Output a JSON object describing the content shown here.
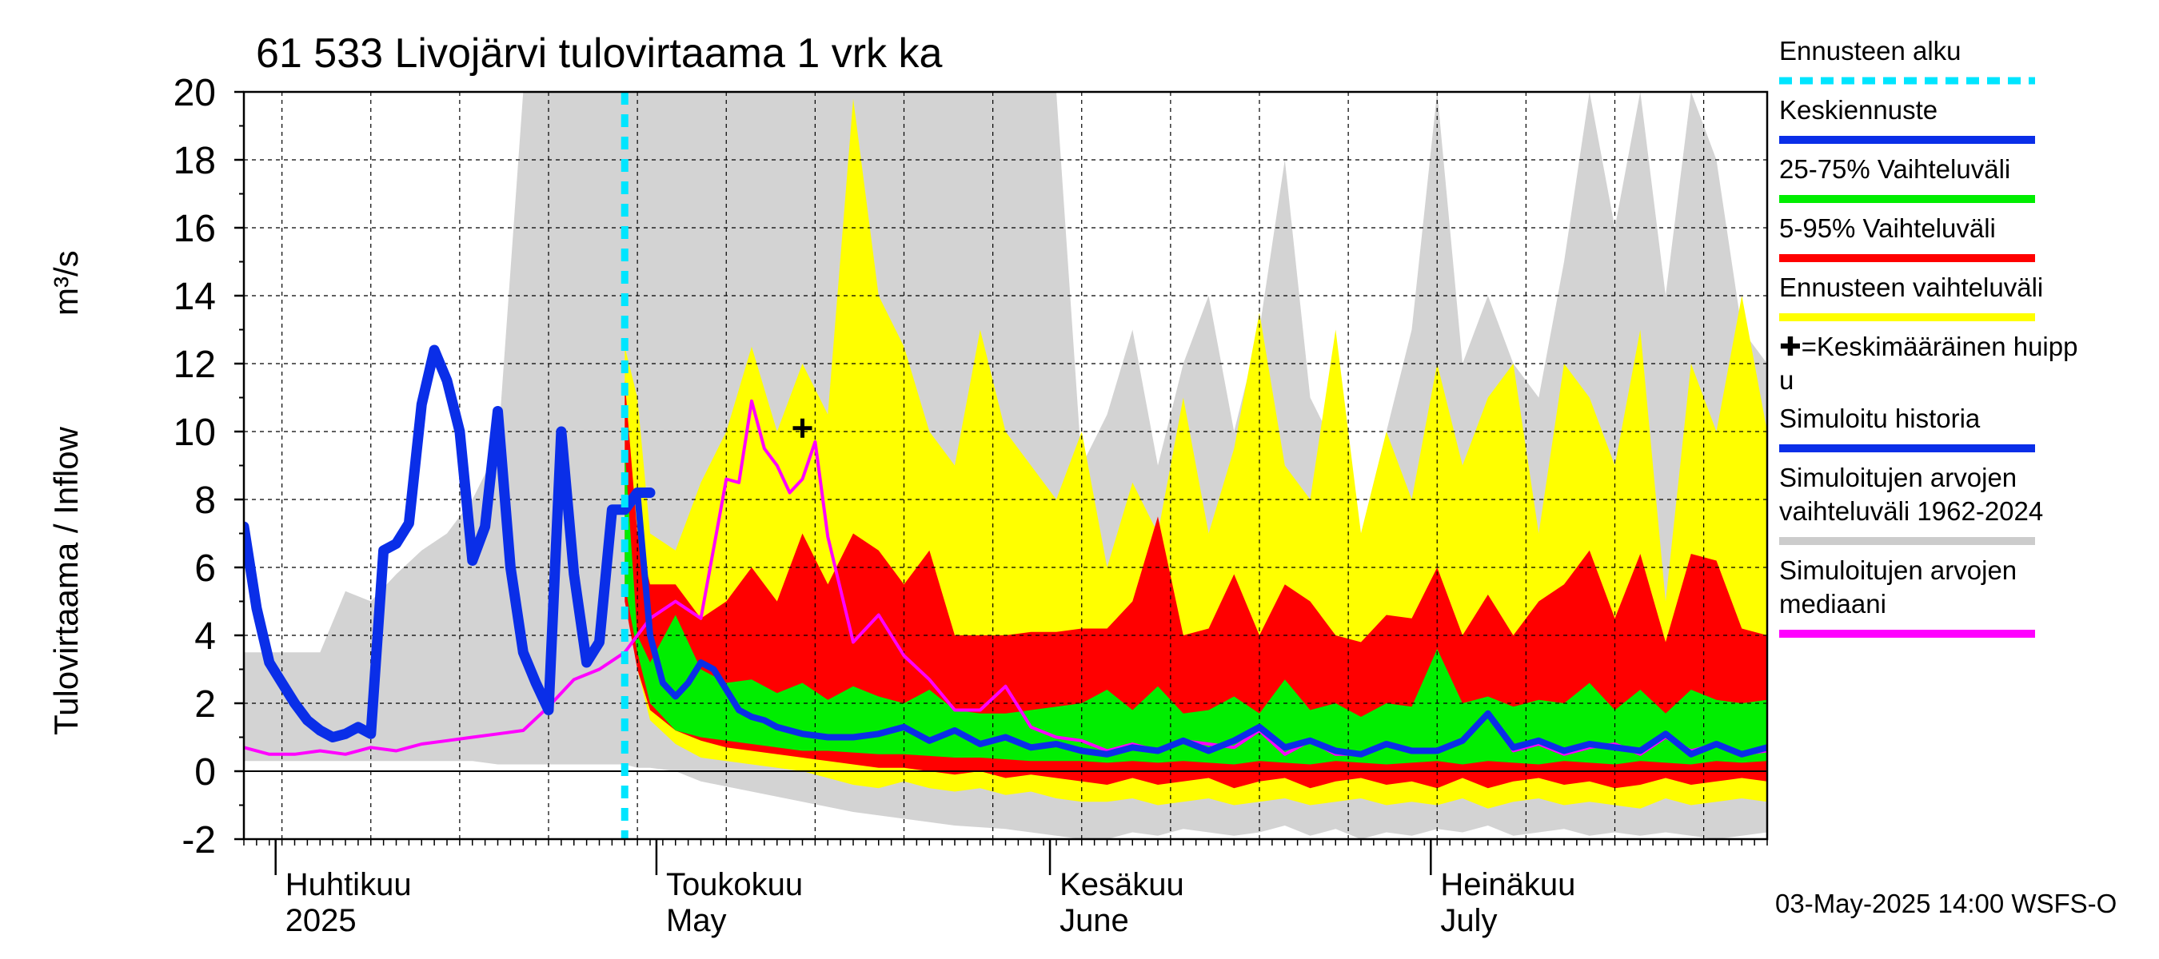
{
  "chart_data": {
    "type": "area",
    "title": "61 533 Livojärvi tulovirtaama 1 vrk ka",
    "ylabel": "Tulovirtaama / Inflow    m³/s",
    "ylabel_main": "Tulovirtaama / Inflow",
    "ylabel_unit": "m³/s",
    "ylim": [
      -2,
      20
    ],
    "y_ticks": [
      "20",
      "18",
      "16",
      "14",
      "12",
      "10",
      "8",
      "6",
      "4",
      "2",
      "0",
      "-2"
    ],
    "grid": true,
    "x_unit": "day index from 2025-03-29",
    "x_range": [
      0,
      120
    ],
    "month_labels": [
      {
        "fi": "Huhtikuu",
        "en": "2025",
        "day": 3
      },
      {
        "fi": "Toukokuu",
        "en": "May",
        "day": 33
      },
      {
        "fi": "Kesäkuu",
        "en": "June",
        "day": 64
      },
      {
        "fi": "Heinäkuu",
        "en": "July",
        "day": 94
      }
    ],
    "forecast_start_day": 30,
    "mean_peak": {
      "day": 44,
      "value": 10.1
    },
    "footer": "03-May-2025 14:00 WSFS-O",
    "legend": [
      {
        "label": "Ennusteen alku",
        "color": "#00e5ff",
        "style": "dashed"
      },
      {
        "label": "Keskiennuste",
        "color": "#0a2ee8",
        "style": "solid"
      },
      {
        "label": "25-75% Vaihteluväli",
        "color": "#00ee00",
        "style": "solid"
      },
      {
        "label": "5-95% Vaihteluväli",
        "color": "#ff0000",
        "style": "solid"
      },
      {
        "label": "Ennusteen vaihteluväli",
        "color": "#ffff00",
        "style": "solid"
      },
      {
        "label": "✚=Keskimääräinen huipp\nu",
        "color": "#000000",
        "style": "marker"
      },
      {
        "label": "Simuloitu historia",
        "color": "#0a2ee8",
        "style": "solid"
      },
      {
        "label": "Simuloitujen arvojen\nvaihteluväli 1962-2024",
        "color": "#cccccc",
        "style": "solid"
      },
      {
        "label": "Simuloitujen arvojen\nmediaani",
        "color": "#ff00ff",
        "style": "solid"
      }
    ],
    "colors": {
      "history_band": "#d3d3d3",
      "forecast_band": "#ffff00",
      "band_5_95": "#ff0000",
      "band_25_75": "#00ee00",
      "mean": "#0a2ee8",
      "median": "#ff00ff",
      "forecast_start": "#00e5ff"
    },
    "series": [
      {
        "name": "Simulated history range 1962-2024",
        "x": [
          0,
          2,
          4,
          6,
          8,
          10,
          12,
          14,
          16,
          18,
          20,
          22,
          24,
          26,
          28,
          30,
          31,
          32,
          34,
          36,
          40,
          44,
          48,
          52,
          56,
          60,
          62,
          64,
          66,
          68,
          70,
          72,
          74,
          76,
          78,
          80,
          82,
          84,
          86,
          88,
          90,
          92,
          94,
          96,
          98,
          100,
          102,
          104,
          106,
          108,
          110,
          112,
          114,
          116,
          118,
          120
        ],
        "low": [
          0.3,
          0.3,
          0.3,
          0.3,
          0.3,
          0.3,
          0.3,
          0.3,
          0.3,
          0.3,
          0.2,
          0.2,
          0.2,
          0.2,
          0.2,
          0.2,
          0.1,
          0.1,
          0,
          -0.3,
          -0.6,
          -0.9,
          -1.2,
          -1.4,
          -1.6,
          -1.7,
          -1.8,
          -1.9,
          -2,
          -2,
          -1.8,
          -1.9,
          -1.7,
          -1.8,
          -1.9,
          -1.8,
          -1.6,
          -1.9,
          -1.7,
          -2,
          -1.8,
          -1.9,
          -1.7,
          -1.8,
          -1.6,
          -1.9,
          -1.8,
          -1.7,
          -1.9,
          -1.8,
          -1.9,
          -1.8,
          -1.9,
          -2,
          -1.9,
          -1.8
        ],
        "high": [
          3.5,
          3.5,
          3.5,
          3.5,
          5.3,
          5.0,
          5.8,
          6.5,
          7.0,
          8.0,
          9.5,
          20,
          20,
          20,
          20,
          20,
          20,
          20,
          20,
          20,
          20,
          20,
          20,
          20,
          20,
          20,
          20,
          20,
          9.0,
          10.5,
          13.0,
          9.0,
          12.0,
          14.0,
          10.0,
          13.0,
          18.0,
          11.0,
          9.5,
          7.0,
          10.0,
          13.0,
          20,
          12.0,
          14.0,
          12.0,
          11.0,
          15.0,
          20,
          16.0,
          20,
          14.0,
          20,
          18.0,
          13.0,
          12.0
        ]
      },
      {
        "name": "Forecast range",
        "x": [
          30,
          31,
          32,
          34,
          36,
          38,
          40,
          42,
          44,
          46,
          48,
          50,
          52,
          54,
          56,
          58,
          60,
          62,
          64,
          66,
          68,
          70,
          72,
          74,
          76,
          78,
          80,
          82,
          84,
          86,
          88,
          90,
          92,
          94,
          96,
          98,
          100,
          102,
          104,
          106,
          108,
          110,
          112,
          114,
          116,
          118,
          120
        ],
        "low": [
          6,
          3,
          1.5,
          0.8,
          0.4,
          0.3,
          0.2,
          0.1,
          0,
          -0.2,
          -0.4,
          -0.5,
          -0.3,
          -0.5,
          -0.6,
          -0.5,
          -0.7,
          -0.6,
          -0.8,
          -0.9,
          -0.9,
          -0.8,
          -1.0,
          -0.9,
          -0.8,
          -1.0,
          -0.9,
          -0.8,
          -1.0,
          -0.9,
          -0.8,
          -1.0,
          -0.9,
          -1.0,
          -0.8,
          -1.1,
          -0.9,
          -0.8,
          -1.0,
          -0.9,
          -1.0,
          -1.1,
          -0.8,
          -1.0,
          -0.9,
          -0.8,
          -0.9
        ],
        "high": [
          12.5,
          11,
          7,
          6.5,
          8.5,
          10,
          12.5,
          10,
          12,
          10.5,
          19.8,
          14,
          12.5,
          10,
          9,
          13,
          10,
          9,
          8,
          10,
          6,
          8.5,
          7,
          11,
          7,
          9.5,
          13.5,
          9,
          8,
          13,
          7,
          10,
          8,
          12,
          9,
          11,
          12,
          7,
          12,
          11,
          9,
          13,
          5,
          12,
          10,
          14,
          10
        ]
      },
      {
        "name": "5-95% range",
        "x": [
          30,
          31,
          32,
          34,
          36,
          38,
          40,
          42,
          44,
          46,
          48,
          50,
          52,
          54,
          56,
          58,
          60,
          62,
          64,
          66,
          68,
          70,
          72,
          74,
          76,
          78,
          80,
          82,
          84,
          86,
          88,
          90,
          92,
          94,
          96,
          98,
          100,
          102,
          104,
          106,
          108,
          110,
          112,
          114,
          116,
          118,
          120
        ],
        "low": [
          5,
          3,
          1.8,
          1.2,
          0.9,
          0.7,
          0.6,
          0.5,
          0.4,
          0.3,
          0.2,
          0.1,
          0.1,
          0,
          -0.1,
          0,
          -0.2,
          -0.1,
          -0.2,
          -0.3,
          -0.4,
          -0.2,
          -0.4,
          -0.3,
          -0.2,
          -0.5,
          -0.3,
          -0.2,
          -0.5,
          -0.3,
          -0.2,
          -0.4,
          -0.3,
          -0.5,
          -0.2,
          -0.5,
          -0.3,
          -0.2,
          -0.4,
          -0.3,
          -0.5,
          -0.4,
          -0.2,
          -0.4,
          -0.3,
          -0.2,
          -0.3
        ],
        "high": [
          11.5,
          7,
          5.5,
          5.5,
          4.5,
          5.0,
          6.0,
          5.0,
          7.0,
          5.5,
          7.0,
          6.5,
          5.5,
          6.5,
          4.0,
          4.0,
          4.0,
          4.1,
          4.1,
          4.2,
          4.2,
          5.0,
          7.5,
          4.0,
          4.2,
          5.8,
          4.0,
          5.5,
          5.0,
          4.0,
          3.8,
          4.6,
          4.5,
          6.0,
          4.0,
          5.2,
          4.0,
          5.0,
          5.5,
          6.5,
          4.5,
          6.4,
          3.8,
          6.4,
          6.2,
          4.2,
          4.0
        ]
      },
      {
        "name": "25-75% range",
        "x": [
          30,
          31,
          32,
          34,
          36,
          38,
          40,
          42,
          44,
          46,
          48,
          50,
          52,
          54,
          56,
          58,
          60,
          62,
          64,
          66,
          68,
          70,
          72,
          74,
          76,
          78,
          80,
          82,
          84,
          86,
          88,
          90,
          92,
          94,
          96,
          98,
          100,
          102,
          104,
          106,
          108,
          110,
          112,
          114,
          116,
          118,
          120
        ],
        "low": [
          5.5,
          3.5,
          2,
          1.2,
          1.0,
          0.9,
          0.8,
          0.7,
          0.6,
          0.6,
          0.55,
          0.5,
          0.5,
          0.45,
          0.4,
          0.4,
          0.35,
          0.3,
          0.3,
          0.3,
          0.25,
          0.3,
          0.25,
          0.3,
          0.25,
          0.2,
          0.3,
          0.25,
          0.2,
          0.3,
          0.25,
          0.2,
          0.25,
          0.3,
          0.2,
          0.3,
          0.25,
          0.2,
          0.3,
          0.25,
          0.2,
          0.3,
          0.25,
          0.2,
          0.3,
          0.25,
          0.3
        ],
        "high": [
          9.5,
          4.0,
          3.2,
          4.6,
          3.0,
          2.6,
          2.7,
          2.3,
          2.6,
          2.1,
          2.5,
          2.2,
          2.0,
          2.4,
          1.8,
          1.7,
          1.7,
          1.8,
          1.9,
          2.0,
          2.4,
          1.8,
          2.5,
          1.7,
          1.8,
          2.2,
          1.7,
          2.7,
          1.8,
          2.0,
          1.6,
          2.0,
          1.9,
          3.6,
          2.0,
          2.2,
          1.9,
          2.1,
          2.0,
          2.6,
          1.8,
          2.4,
          1.7,
          2.4,
          2.1,
          2.0,
          2.1
        ]
      },
      {
        "name": "Simulated history",
        "x": [
          0,
          1,
          2,
          3,
          4,
          5,
          6,
          7,
          8,
          9,
          10,
          11,
          12,
          13,
          14,
          15,
          16,
          17,
          18,
          19,
          20,
          21,
          22,
          23,
          24,
          25,
          26,
          27,
          28,
          29,
          30,
          31,
          32
        ],
        "values": [
          7.2,
          4.8,
          3.2,
          2.6,
          2.0,
          1.5,
          1.2,
          1.0,
          1.1,
          1.3,
          1.1,
          6.5,
          6.7,
          7.3,
          10.8,
          12.4,
          11.5,
          10.0,
          6.2,
          7.2,
          10.6,
          6.0,
          3.5,
          2.6,
          1.8,
          10.0,
          5.8,
          3.2,
          3.8,
          7.7,
          7.7,
          8.2,
          8.2
        ]
      },
      {
        "name": "Mean forecast",
        "x": [
          31,
          32,
          33,
          34,
          35,
          36,
          37,
          38,
          39,
          40,
          41,
          42,
          44,
          46,
          48,
          50,
          52,
          54,
          56,
          58,
          60,
          62,
          64,
          66,
          68,
          70,
          72,
          74,
          76,
          78,
          80,
          82,
          84,
          86,
          88,
          90,
          92,
          94,
          96,
          98,
          100,
          102,
          104,
          106,
          108,
          110,
          112,
          114,
          116,
          118,
          120
        ],
        "values": [
          8.2,
          4.0,
          2.6,
          2.2,
          2.6,
          3.2,
          3.0,
          2.4,
          1.8,
          1.6,
          1.5,
          1.3,
          1.1,
          1.0,
          1.0,
          1.1,
          1.3,
          0.9,
          1.2,
          0.8,
          1.0,
          0.7,
          0.8,
          0.6,
          0.5,
          0.7,
          0.6,
          0.9,
          0.6,
          0.9,
          1.3,
          0.7,
          0.9,
          0.6,
          0.5,
          0.8,
          0.6,
          0.6,
          0.9,
          1.7,
          0.7,
          0.9,
          0.6,
          0.8,
          0.7,
          0.6,
          1.1,
          0.5,
          0.8,
          0.5,
          0.7
        ]
      },
      {
        "name": "Median of simulated values",
        "x": [
          0,
          2,
          4,
          6,
          8,
          10,
          12,
          14,
          16,
          18,
          20,
          22,
          24,
          26,
          28,
          30,
          32,
          34,
          36,
          38,
          39,
          40,
          41,
          42,
          43,
          44,
          45,
          46,
          48,
          50,
          52,
          54,
          56,
          58,
          60,
          62,
          64,
          66,
          68,
          70,
          72,
          74,
          76,
          78,
          80,
          82,
          84,
          86,
          88,
          90,
          92,
          94,
          96,
          98,
          100,
          102,
          104,
          106,
          108,
          110,
          112,
          114,
          116,
          118,
          120
        ],
        "values": [
          0.7,
          0.5,
          0.5,
          0.6,
          0.5,
          0.7,
          0.6,
          0.8,
          0.9,
          1.0,
          1.1,
          1.2,
          1.9,
          2.7,
          3.0,
          3.5,
          4.5,
          5.0,
          4.5,
          8.6,
          8.5,
          10.9,
          9.5,
          9.0,
          8.2,
          8.6,
          9.7,
          6.9,
          3.8,
          4.6,
          3.4,
          2.7,
          1.8,
          1.8,
          2.5,
          1.3,
          1.0,
          0.9,
          0.6,
          0.8,
          0.6,
          0.9,
          0.8,
          0.7,
          1.2,
          0.5,
          0.9,
          0.5,
          0.5,
          0.8,
          0.6,
          0.6,
          0.9,
          1.7,
          0.6,
          0.8,
          0.5,
          0.7,
          0.8,
          0.5,
          1.0,
          0.6,
          0.8,
          0.5,
          0.6
        ]
      }
    ]
  }
}
